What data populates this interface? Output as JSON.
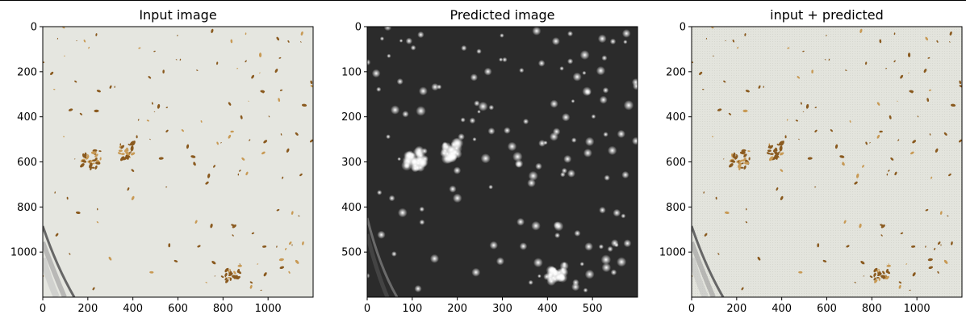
{
  "colors": {
    "input_bg": "#e5e6e0",
    "predicted_bg": "#2b2b2b",
    "overlay_bg": "#e1e2db",
    "speck": "#8a5a1f",
    "speck_light": "#c89a55",
    "blob": "#ffffff",
    "axes": "#000000",
    "plate_rim": "#555555"
  },
  "panels": [
    {
      "id": "input",
      "title": "Input image",
      "kind": "photo",
      "xlim": [
        0,
        1200
      ],
      "ylim": [
        1200,
        0
      ],
      "xticks": [
        "0",
        "200",
        "400",
        "600",
        "800",
        "1000"
      ],
      "yticks": [
        "0",
        "200",
        "400",
        "600",
        "800",
        "1000"
      ]
    },
    {
      "id": "predicted",
      "title": "Predicted image",
      "kind": "mask",
      "xlim": [
        0,
        600
      ],
      "ylim": [
        600,
        0
      ],
      "xticks": [
        "0",
        "100",
        "200",
        "300",
        "400",
        "500"
      ],
      "yticks": [
        "0",
        "100",
        "200",
        "300",
        "400",
        "500"
      ]
    },
    {
      "id": "overlay",
      "title": "input + predicted",
      "kind": "overlay",
      "xlim": [
        0,
        1200
      ],
      "ylim": [
        1200,
        0
      ],
      "xticks": [
        "0",
        "200",
        "400",
        "600",
        "800",
        "1000"
      ],
      "yticks": [
        "0",
        "200",
        "400",
        "600",
        "800",
        "1000"
      ]
    }
  ]
}
